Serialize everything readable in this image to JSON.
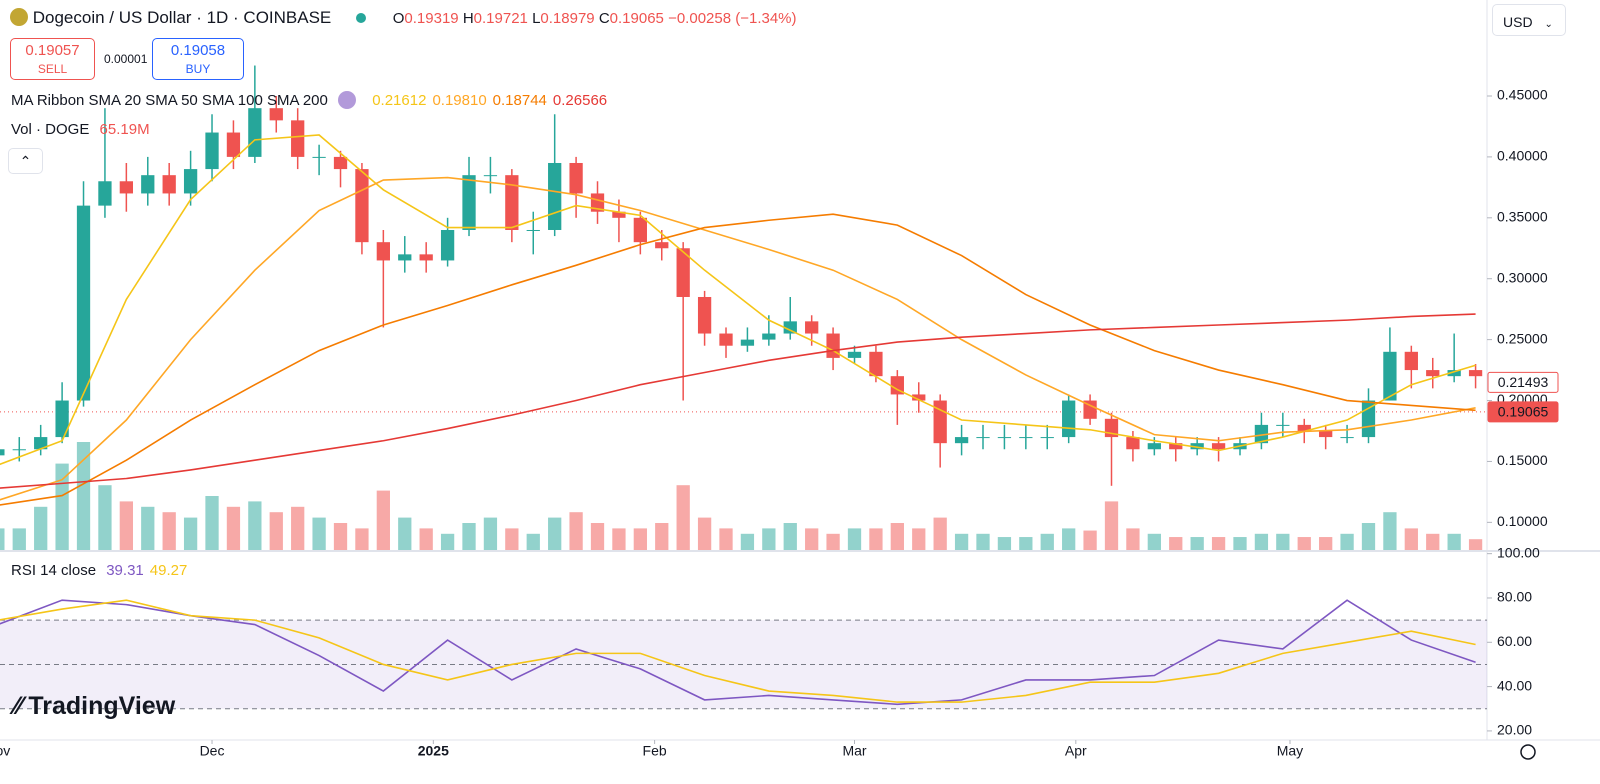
{
  "header": {
    "symbol": "Dogecoin / US Dollar · 1D · COINBASE",
    "open_label": "O",
    "open": "0.19319",
    "high_label": "H",
    "high": "0.19721",
    "low_label": "L",
    "low": "0.18979",
    "close_label": "C",
    "close": "0.19065",
    "change": "−0.00258 (−1.34%)",
    "currency": "USD"
  },
  "trade": {
    "sell_price": "0.19057",
    "sell_label": "SELL",
    "spread": "0.00001",
    "buy_price": "0.19058",
    "buy_label": "BUY"
  },
  "legend": {
    "ma_title": "MA Ribbon SMA 20 SMA 50 SMA 100 SMA 200",
    "ma_values": [
      "0.21612",
      "0.19810",
      "0.18744",
      "0.26566"
    ],
    "vol_title": "Vol · DOGE",
    "vol_value": "65.19M",
    "rsi_title": "RSI 14 close",
    "rsi_values": [
      "39.31",
      "49.27"
    ]
  },
  "brand": "TradingView",
  "chart_data": {
    "type": "candlestick",
    "up_color": "#26a69a",
    "down_color": "#ef5350",
    "x": [
      0,
      3,
      6,
      9,
      12,
      15,
      18,
      21,
      24,
      27,
      30,
      33,
      36,
      39,
      42,
      45,
      48,
      51,
      54,
      57,
      60,
      63,
      66,
      69,
      72,
      75,
      78,
      81,
      84,
      87,
      90,
      93,
      96,
      99,
      102,
      105,
      108,
      111,
      114,
      117,
      120,
      123,
      126,
      129,
      132,
      135,
      138,
      141,
      144,
      147,
      150,
      153,
      156,
      159,
      162,
      165,
      168,
      171,
      174,
      177,
      180,
      183,
      186,
      189,
      192,
      195,
      198,
      201,
      204,
      207
    ],
    "open": [
      0.155,
      0.16,
      0.16,
      0.17,
      0.2,
      0.36,
      0.38,
      0.37,
      0.385,
      0.37,
      0.39,
      0.42,
      0.4,
      0.44,
      0.43,
      0.4,
      0.4,
      0.39,
      0.33,
      0.315,
      0.32,
      0.315,
      0.34,
      0.385,
      0.385,
      0.34,
      0.34,
      0.395,
      0.37,
      0.355,
      0.35,
      0.33,
      0.325,
      0.285,
      0.255,
      0.245,
      0.25,
      0.255,
      0.265,
      0.255,
      0.235,
      0.24,
      0.22,
      0.205,
      0.2,
      0.165,
      0.17,
      0.17,
      0.17,
      0.17,
      0.17,
      0.2,
      0.185,
      0.17,
      0.16,
      0.165,
      0.16,
      0.165,
      0.16,
      0.165,
      0.18,
      0.18,
      0.175,
      0.17,
      0.17,
      0.2,
      0.24,
      0.225,
      0.22,
      0.225
    ],
    "high": [
      0.17,
      0.17,
      0.18,
      0.215,
      0.38,
      0.44,
      0.395,
      0.4,
      0.395,
      0.405,
      0.435,
      0.43,
      0.475,
      0.45,
      0.44,
      0.41,
      0.405,
      0.395,
      0.34,
      0.335,
      0.33,
      0.35,
      0.4,
      0.4,
      0.39,
      0.355,
      0.435,
      0.4,
      0.38,
      0.365,
      0.355,
      0.34,
      0.33,
      0.29,
      0.26,
      0.26,
      0.27,
      0.285,
      0.27,
      0.26,
      0.245,
      0.245,
      0.225,
      0.215,
      0.205,
      0.18,
      0.18,
      0.18,
      0.18,
      0.18,
      0.205,
      0.205,
      0.19,
      0.175,
      0.17,
      0.17,
      0.17,
      0.17,
      0.17,
      0.19,
      0.19,
      0.185,
      0.18,
      0.18,
      0.21,
      0.26,
      0.245,
      0.235,
      0.255,
      0.23
    ],
    "low": [
      0.145,
      0.15,
      0.155,
      0.165,
      0.195,
      0.35,
      0.355,
      0.36,
      0.36,
      0.36,
      0.38,
      0.39,
      0.395,
      0.42,
      0.39,
      0.385,
      0.375,
      0.32,
      0.26,
      0.305,
      0.305,
      0.31,
      0.335,
      0.37,
      0.33,
      0.32,
      0.335,
      0.35,
      0.345,
      0.33,
      0.32,
      0.315,
      0.2,
      0.245,
      0.235,
      0.24,
      0.245,
      0.25,
      0.245,
      0.225,
      0.23,
      0.215,
      0.18,
      0.19,
      0.145,
      0.155,
      0.16,
      0.16,
      0.16,
      0.16,
      0.165,
      0.18,
      0.13,
      0.15,
      0.155,
      0.15,
      0.155,
      0.15,
      0.155,
      0.16,
      0.17,
      0.165,
      0.16,
      0.165,
      0.165,
      0.2,
      0.21,
      0.21,
      0.215,
      0.21
    ],
    "close": [
      0.16,
      0.16,
      0.17,
      0.2,
      0.36,
      0.38,
      0.37,
      0.385,
      0.37,
      0.39,
      0.42,
      0.4,
      0.44,
      0.43,
      0.4,
      0.4,
      0.39,
      0.33,
      0.315,
      0.32,
      0.315,
      0.34,
      0.385,
      0.385,
      0.34,
      0.34,
      0.395,
      0.37,
      0.355,
      0.35,
      0.33,
      0.325,
      0.285,
      0.255,
      0.245,
      0.25,
      0.255,
      0.265,
      0.255,
      0.235,
      0.24,
      0.22,
      0.205,
      0.2,
      0.165,
      0.17,
      0.17,
      0.17,
      0.17,
      0.17,
      0.2,
      0.185,
      0.17,
      0.16,
      0.165,
      0.16,
      0.165,
      0.16,
      0.165,
      0.18,
      0.18,
      0.175,
      0.17,
      0.17,
      0.2,
      0.24,
      0.225,
      0.22,
      0.225,
      0.22
    ],
    "volume": [
      20,
      20,
      40,
      80,
      100,
      60,
      45,
      40,
      35,
      30,
      50,
      40,
      45,
      35,
      40,
      30,
      25,
      20,
      55,
      30,
      20,
      15,
      25,
      30,
      20,
      15,
      30,
      35,
      25,
      20,
      20,
      25,
      60,
      30,
      20,
      15,
      20,
      25,
      20,
      15,
      20,
      20,
      25,
      20,
      30,
      15,
      15,
      12,
      12,
      15,
      20,
      18,
      45,
      20,
      15,
      12,
      12,
      12,
      12,
      15,
      15,
      12,
      12,
      15,
      25,
      35,
      20,
      15,
      15,
      10
    ],
    "xlim": [
      0.3,
      208.6
    ],
    "xticks": [
      {
        "value": 0,
        "label": "Nov"
      },
      {
        "value": 30,
        "label": "Dec"
      },
      {
        "value": 61,
        "label": "2025"
      },
      {
        "value": 92,
        "label": "Feb"
      },
      {
        "value": 120,
        "label": "Mar"
      },
      {
        "value": 151,
        "label": "Apr"
      },
      {
        "value": 181,
        "label": "May"
      }
    ],
    "ylim": [
      0.0773,
      0.5288
    ],
    "yticks": [
      {
        "value": 0.45,
        "label": "0.45000"
      },
      {
        "value": 0.4,
        "label": "0.40000"
      },
      {
        "value": 0.35,
        "label": "0.35000"
      },
      {
        "value": 0.3,
        "label": "0.30000"
      },
      {
        "value": 0.25,
        "label": "0.25000"
      },
      {
        "value": 0.2,
        "label": "0.20000"
      },
      {
        "value": 0.15,
        "label": "0.15000"
      },
      {
        "value": 0.1,
        "label": "0.10000"
      }
    ],
    "price_labels": [
      {
        "value": 0.21493,
        "label": "0.21493",
        "color": "#ef5350",
        "filled": false
      },
      {
        "value": 0.19065,
        "label": "0.19065",
        "color": "#ef5350",
        "filled": true
      }
    ],
    "ma_x": [
      0,
      9,
      18,
      27,
      36,
      45,
      54,
      63,
      72,
      81,
      90,
      99,
      108,
      117,
      126,
      135,
      144,
      153,
      162,
      171,
      180,
      189,
      198,
      207
    ],
    "moving_averages": [
      {
        "color": "#f5c518",
        "values": [
          0.147,
          0.167,
          0.283,
          0.365,
          0.414,
          0.418,
          0.373,
          0.342,
          0.342,
          0.36,
          0.352,
          0.307,
          0.266,
          0.241,
          0.209,
          0.184,
          0.18,
          0.176,
          0.167,
          0.159,
          0.17,
          0.184,
          0.213,
          0.229
        ]
      },
      {
        "color": "#ffa726",
        "values": [
          0.118,
          0.135,
          0.184,
          0.25,
          0.307,
          0.356,
          0.381,
          0.383,
          0.377,
          0.369,
          0.356,
          0.34,
          0.324,
          0.307,
          0.283,
          0.25,
          0.221,
          0.196,
          0.172,
          0.167,
          0.174,
          0.176,
          0.184,
          0.194
        ]
      },
      {
        "color": "#f57c00",
        "values": [
          0.114,
          0.122,
          0.151,
          0.184,
          0.213,
          0.241,
          0.262,
          0.278,
          0.295,
          0.311,
          0.328,
          0.342,
          0.348,
          0.353,
          0.344,
          0.319,
          0.287,
          0.262,
          0.241,
          0.225,
          0.213,
          0.2,
          0.196,
          0.192
        ]
      },
      {
        "color": "#e53935",
        "values": [
          0.128,
          0.132,
          0.136,
          0.143,
          0.151,
          0.159,
          0.167,
          0.177,
          0.188,
          0.2,
          0.213,
          0.223,
          0.233,
          0.241,
          0.248,
          0.252,
          0.255,
          0.258,
          0.26,
          0.262,
          0.264,
          0.266,
          0.269,
          0.271
        ]
      }
    ],
    "rsi": {
      "ylim": [
        15.9,
        101.2
      ],
      "yticks": [
        {
          "value": 100,
          "label": "100.00"
        },
        {
          "value": 80,
          "label": "80.00"
        },
        {
          "value": 60,
          "label": "60.00"
        },
        {
          "value": 40,
          "label": "40.00"
        },
        {
          "value": 20,
          "label": "20.00"
        }
      ],
      "levels": [
        70,
        50,
        30
      ],
      "x": [
        0,
        9,
        18,
        27,
        36,
        45,
        54,
        63,
        72,
        81,
        90,
        99,
        108,
        117,
        126,
        135,
        144,
        153,
        162,
        171,
        180,
        189,
        198,
        207
      ],
      "series": [
        {
          "color": "#7e57c2",
          "values": [
            68,
            79,
            77,
            72,
            68,
            54,
            38,
            61,
            43,
            57,
            48,
            34,
            36,
            34,
            32,
            34,
            43,
            43,
            45,
            61,
            57,
            79,
            61,
            51
          ]
        },
        {
          "color": "#f5c518",
          "values": [
            70,
            75,
            79,
            72,
            70,
            62,
            50,
            43,
            50,
            55,
            55,
            45,
            38,
            36,
            33,
            33,
            36,
            42,
            42,
            46,
            55,
            60,
            65,
            59
          ]
        }
      ]
    }
  }
}
